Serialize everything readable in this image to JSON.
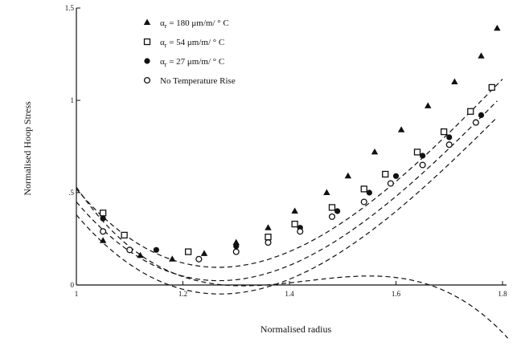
{
  "chart_data": {
    "type": "scatter",
    "xlabel": "Normalised radius",
    "ylabel": "Normalised Hoop Stress",
    "xlim": [
      1.0,
      1.8
    ],
    "ylim": [
      0,
      1.5
    ],
    "x_ticks": [
      {
        "value": 1.0,
        "label": "1"
      },
      {
        "value": 1.2,
        "label": "1.2"
      },
      {
        "value": 1.4,
        "label": "1.4"
      },
      {
        "value": 1.6,
        "label": "1.6"
      },
      {
        "value": 1.8,
        "label": "1.8"
      }
    ],
    "y_ticks": [
      {
        "value": 0,
        "label": "0"
      },
      {
        "value": 0.5,
        "label": ".5"
      },
      {
        "value": 1.0,
        "label": "1"
      },
      {
        "value": 1.5,
        "label": "1.5"
      }
    ],
    "grid": false,
    "legend_position": "top-left",
    "series": [
      {
        "name": "180",
        "legend": {
          "prefix": "α",
          "sub": "r",
          "text": " = 180 μm/m/ ° C"
        },
        "marker": "triangle-filled",
        "x": [
          1.05,
          1.12,
          1.18,
          1.24,
          1.3,
          1.36,
          1.41,
          1.47,
          1.51,
          1.56,
          1.61,
          1.66,
          1.71,
          1.76,
          1.79
        ],
        "y": [
          0.24,
          0.16,
          0.14,
          0.17,
          0.23,
          0.31,
          0.4,
          0.5,
          0.59,
          0.72,
          0.84,
          0.97,
          1.1,
          1.24,
          1.39
        ],
        "curve": {
          "x0": 1.0,
          "x1": 1.81,
          "a": 0.53,
          "b": -4.2,
          "c": 10.5,
          "d": -8.1
        }
      },
      {
        "name": "54",
        "legend": {
          "prefix": "α",
          "sub": "r",
          "text": " = 54 μm/m/ ° C"
        },
        "marker": "square-open",
        "x": [
          1.05,
          1.09,
          1.21,
          1.36,
          1.41,
          1.48,
          1.54,
          1.58,
          1.64,
          1.69,
          1.74,
          1.78
        ],
        "y": [
          0.39,
          0.27,
          0.18,
          0.26,
          0.33,
          0.42,
          0.52,
          0.6,
          0.72,
          0.83,
          0.94,
          1.07
        ],
        "curve": {
          "x0": 1.0,
          "x1": 1.8,
          "a": 0.52,
          "b": -3.4,
          "c": 7.58,
          "d": -3.0
        }
      },
      {
        "name": "27",
        "legend": {
          "prefix": "α",
          "sub": "r",
          "text": " = 27 μm/m/ ° C"
        },
        "marker": "circle-filled",
        "x": [
          1.05,
          1.15,
          1.3,
          1.42,
          1.49,
          1.55,
          1.6,
          1.65,
          1.7,
          1.76
        ],
        "y": [
          0.36,
          0.19,
          0.21,
          0.31,
          0.4,
          0.5,
          0.59,
          0.7,
          0.8,
          0.92
        ],
        "curve": {
          "x0": 1.0,
          "x1": 1.79,
          "a": 0.45,
          "b": -3.4,
          "c": 7.55,
          "d": -3.0
        }
      },
      {
        "name": "No Temperature Rise",
        "legend": {
          "prefix": "",
          "sub": "",
          "text": "No Temperature Rise"
        },
        "marker": "circle-open",
        "x": [
          1.05,
          1.1,
          1.23,
          1.3,
          1.36,
          1.42,
          1.48,
          1.54,
          1.59,
          1.65,
          1.7,
          1.75
        ],
        "y": [
          0.29,
          0.19,
          0.14,
          0.18,
          0.23,
          0.29,
          0.37,
          0.45,
          0.55,
          0.65,
          0.76,
          0.88
        ],
        "curve": {
          "x0": 1.0,
          "x1": 1.79,
          "a": 0.38,
          "b": -3.4,
          "c": 7.52,
          "d": -3.0
        }
      }
    ]
  }
}
